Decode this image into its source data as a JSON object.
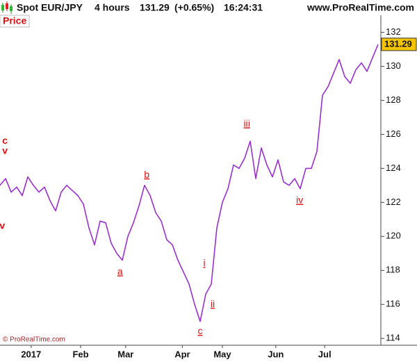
{
  "header": {
    "symbol": "Spot EUR/JPY",
    "timeframe": "4 hours",
    "change": "(+0.65%)",
    "time": "16:24:31",
    "site": "www.ProRealTime.com"
  },
  "panel_label": "Price",
  "watermark": "© ProRealTime.com",
  "chart_data": {
    "type": "line",
    "x": [
      0,
      1,
      2,
      3,
      4,
      5,
      6,
      7,
      8,
      9,
      10,
      11,
      12,
      13,
      14,
      15,
      16,
      17,
      18,
      19,
      20,
      21,
      22,
      23,
      24,
      25,
      26,
      27,
      28,
      29,
      30,
      31,
      32,
      33,
      34,
      35,
      36,
      37,
      38,
      39,
      40,
      41,
      42,
      43,
      44,
      45,
      46,
      47,
      48,
      49,
      50,
      51,
      52,
      53,
      54,
      55,
      56,
      57,
      58,
      59,
      60,
      61,
      62,
      63,
      64,
      65,
      66,
      67,
      68
    ],
    "series": [
      {
        "name": "Spot EUR/JPY",
        "color": "#9a2fd0",
        "values": [
          123.0,
          123.4,
          122.6,
          122.9,
          122.4,
          123.5,
          123.0,
          122.6,
          122.9,
          122.1,
          121.5,
          122.6,
          123.0,
          122.7,
          122.4,
          121.9,
          120.5,
          119.5,
          120.9,
          120.8,
          119.6,
          119.0,
          118.6,
          120.0,
          120.8,
          121.8,
          123.0,
          122.4,
          121.4,
          120.9,
          119.8,
          119.5,
          118.6,
          117.9,
          117.2,
          116.0,
          115.0,
          116.6,
          117.2,
          120.5,
          122.0,
          122.8,
          124.2,
          124.0,
          124.6,
          125.6,
          123.4,
          125.2,
          124.2,
          123.5,
          124.5,
          123.2,
          123.0,
          123.4,
          122.8,
          124.0,
          124.0,
          125.0,
          128.3,
          128.8,
          129.6,
          130.4,
          129.4,
          129.0,
          129.8,
          130.2,
          129.7,
          130.5,
          131.29
        ]
      }
    ],
    "xlim": [
      0,
      68.5
    ],
    "xticks": [
      {
        "value": 5.6,
        "label": "2017"
      },
      {
        "value": 14.5,
        "label": "Feb"
      },
      {
        "value": 22.6,
        "label": "Mar"
      },
      {
        "value": 32.8,
        "label": "Apr"
      },
      {
        "value": 40,
        "label": "May"
      },
      {
        "value": 49.6,
        "label": "Jun"
      },
      {
        "value": 58.4,
        "label": "Jul"
      }
    ],
    "ylim": [
      113.6,
      133
    ],
    "yticks": [
      114,
      116,
      118,
      120,
      122,
      124,
      126,
      128,
      130,
      132
    ],
    "last_value_color": "#f5c400",
    "annotations": [
      {
        "text": "c",
        "x": 0.9,
        "y": 125.6,
        "underlined": false
      },
      {
        "text": "v",
        "x": 0.9,
        "y": 125.0,
        "underlined": false
      },
      {
        "text": "v",
        "x": 0.4,
        "y": 120.6,
        "underlined": false
      },
      {
        "text": "a",
        "x": 21.6,
        "y": 117.9,
        "underlined": true
      },
      {
        "text": "b",
        "x": 26.4,
        "y": 123.6,
        "underlined": true
      },
      {
        "text": "c",
        "x": 36,
        "y": 114.4,
        "underlined": true
      },
      {
        "text": "i",
        "x": 36.75,
        "y": 118.4,
        "underlined": true
      },
      {
        "text": "ii",
        "x": 38.25,
        "y": 116.0,
        "underlined": true
      },
      {
        "text": "iii",
        "x": 44.4,
        "y": 126.6,
        "underlined": true
      },
      {
        "text": "iv",
        "x": 53.9,
        "y": 122.1,
        "underlined": true
      }
    ]
  }
}
